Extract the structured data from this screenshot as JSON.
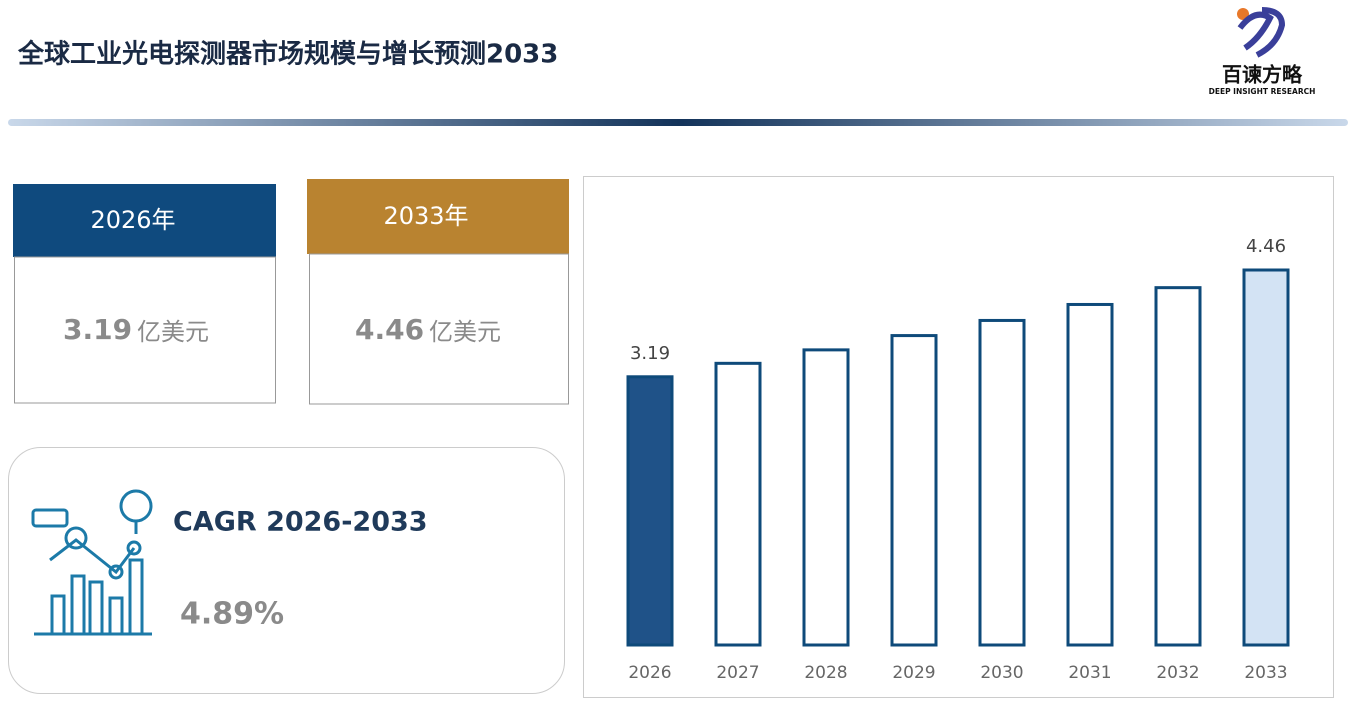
{
  "header": {
    "title": "全球工业光电探测器市场规模与增长预测2033",
    "logo_name": "百谏方略",
    "logo_subtitle": "DEEP INSIGHT RESEARCH"
  },
  "cards": [
    {
      "year": "2026年",
      "value": 3.19,
      "unit": "亿美元",
      "color": "#0f4a7e"
    },
    {
      "year": "2033年",
      "value": 4.46,
      "unit": "亿美元",
      "color": "#b98330"
    }
  ],
  "cagr": {
    "label": "CAGR 2026-2033",
    "value": "4.89%"
  },
  "chart_data": {
    "type": "bar",
    "categories": [
      "2026",
      "2027",
      "2028",
      "2029",
      "2030",
      "2031",
      "2032",
      "2033"
    ],
    "values": [
      3.19,
      3.35,
      3.51,
      3.68,
      3.86,
      4.05,
      4.25,
      4.46
    ],
    "value_labels": [
      "3.19",
      null,
      null,
      null,
      null,
      null,
      null,
      "4.46"
    ],
    "colors": [
      "#1f5288",
      "#ffffff",
      "#ffffff",
      "#ffffff",
      "#ffffff",
      "#ffffff",
      "#ffffff",
      "#d3e3f4"
    ],
    "stroke_color": "#0e4a7a"
  }
}
